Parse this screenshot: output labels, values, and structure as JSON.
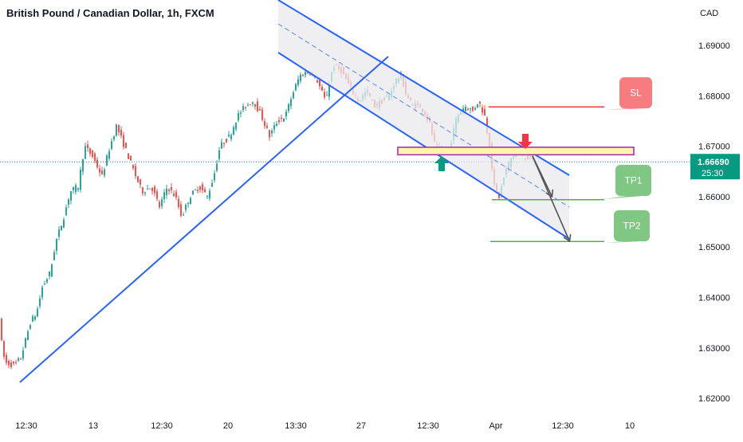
{
  "header": {
    "title": "British Pound / Canadian Dollar, 1h, FXCM"
  },
  "price_axis": {
    "currency": "CAD",
    "ticks": [
      "1.69000",
      "1.68000",
      "1.67000",
      "1.66000",
      "1.65000",
      "1.64000",
      "1.63000",
      "1.62000"
    ],
    "current_price": "1.66690",
    "countdown": "25:30"
  },
  "time_axis": {
    "ticks": [
      "12:30",
      "13",
      "12:30",
      "20",
      "13:30",
      "27",
      "12:30",
      "Apr",
      "12:30",
      "10"
    ]
  },
  "labels": {
    "sl": "SL",
    "tp1": "TP1",
    "tp2": "TP2"
  },
  "colors": {
    "up": "#26a69a",
    "down": "#ef5350",
    "trendline": "#2962ff",
    "channel_fill": "#e9eaee",
    "sl": "#f23645",
    "tp": "#4caf50",
    "zone_fill": "#fff3b0",
    "zone_border": "#9c27b0",
    "price_tag": "#089981",
    "arrow": "#555555"
  },
  "chart_data": {
    "type": "candlestick",
    "title": "British Pound / Canadian Dollar, 1h, FXCM",
    "ylabel": "CAD",
    "ylim": [
      1.6165,
      1.7005
    ],
    "current_price": 1.6669,
    "levels": {
      "SL": 1.6778,
      "resistance_zone": [
        1.6683,
        1.6698
      ],
      "TP1": 1.6594,
      "TP2": 1.6511
    },
    "price_path": [
      [
        0,
        1.638
      ],
      [
        2,
        1.635
      ],
      [
        5,
        1.629
      ],
      [
        10,
        1.627
      ],
      [
        20,
        1.6265
      ],
      [
        28,
        1.628
      ],
      [
        40,
        1.635
      ],
      [
        48,
        1.637
      ],
      [
        55,
        1.642
      ],
      [
        65,
        1.645
      ],
      [
        72,
        1.651
      ],
      [
        82,
        1.656
      ],
      [
        90,
        1.661
      ],
      [
        100,
        1.662
      ],
      [
        108,
        1.67
      ],
      [
        118,
        1.668
      ],
      [
        130,
        1.664
      ],
      [
        140,
        1.67
      ],
      [
        148,
        1.674
      ],
      [
        158,
        1.67
      ],
      [
        170,
        1.665
      ],
      [
        180,
        1.661
      ],
      [
        192,
        1.662
      ],
      [
        202,
        1.658
      ],
      [
        212,
        1.662
      ],
      [
        222,
        1.66
      ],
      [
        230,
        1.656
      ],
      [
        240,
        1.66
      ],
      [
        252,
        1.662
      ],
      [
        262,
        1.66
      ],
      [
        270,
        1.664
      ],
      [
        278,
        1.67
      ],
      [
        290,
        1.672
      ],
      [
        300,
        1.676
      ],
      [
        310,
        1.678
      ],
      [
        320,
        1.679
      ],
      [
        330,
        1.676
      ],
      [
        340,
        1.672
      ],
      [
        350,
        1.675
      ],
      [
        360,
        1.676
      ],
      [
        368,
        1.68
      ],
      [
        378,
        1.684
      ],
      [
        390,
        1.685
      ],
      [
        400,
        1.683
      ],
      [
        410,
        1.679
      ],
      [
        420,
        1.686
      ],
      [
        430,
        1.685
      ],
      [
        440,
        1.682
      ],
      [
        452,
        1.679
      ],
      [
        462,
        1.681
      ],
      [
        472,
        1.678
      ],
      [
        482,
        1.679
      ],
      [
        490,
        1.68
      ],
      [
        498,
        1.683
      ],
      [
        505,
        1.684
      ],
      [
        512,
        1.68
      ],
      [
        520,
        1.678
      ],
      [
        530,
        1.678
      ],
      [
        540,
        1.675
      ],
      [
        548,
        1.67
      ],
      [
        556,
        1.669
      ],
      [
        565,
        1.669
      ],
      [
        575,
        1.676
      ],
      [
        585,
        1.678
      ],
      [
        595,
        1.677
      ],
      [
        602,
        1.679
      ],
      [
        610,
        1.676
      ],
      [
        616,
        1.67
      ],
      [
        622,
        1.662
      ],
      [
        628,
        1.66
      ],
      [
        636,
        1.665
      ],
      [
        644,
        1.668
      ],
      [
        652,
        1.669
      ],
      [
        660,
        1.668
      ],
      [
        668,
        1.6675
      ],
      [
        673,
        1.6669
      ]
    ]
  }
}
